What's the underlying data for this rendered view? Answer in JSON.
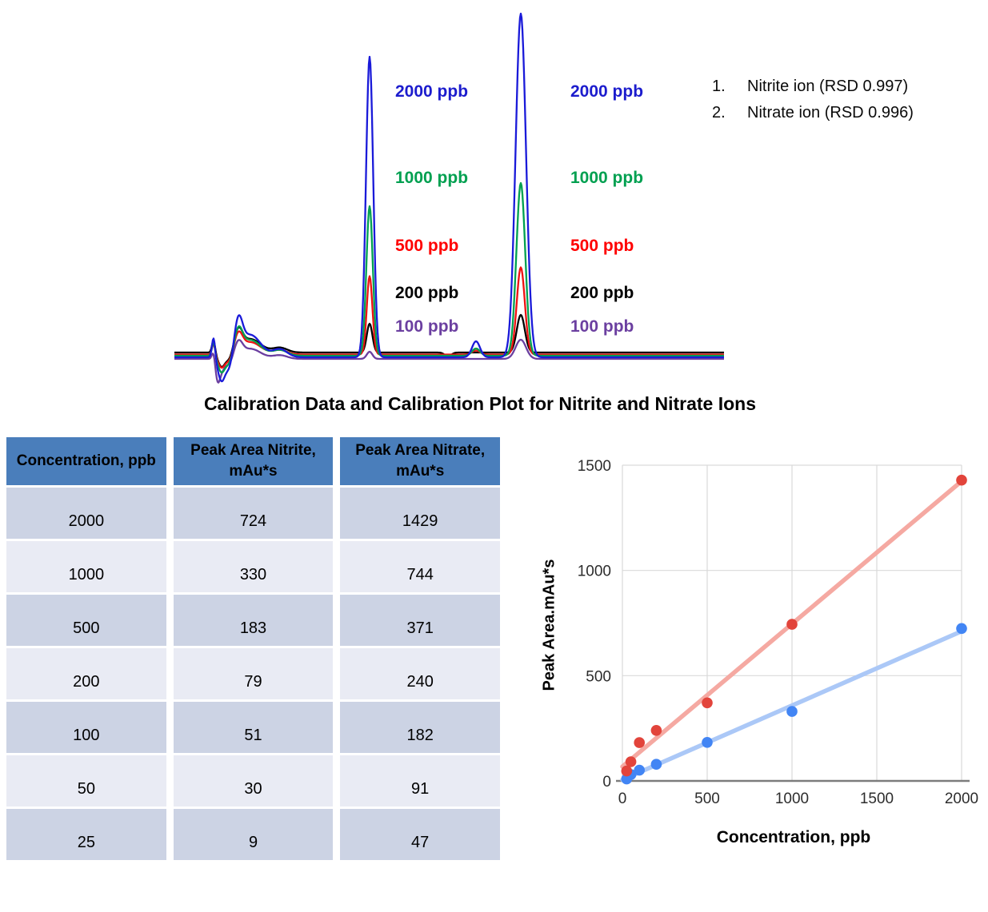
{
  "title": "Calibration Data and Calibration Plot for Nitrite and Nitrate Ions",
  "chromatogram": {
    "legend": [
      {
        "num": "1.",
        "label": "Nitrite ion (RSD 0.997)"
      },
      {
        "num": "2.",
        "label": "Nitrate ion (RSD 0.996)"
      }
    ],
    "concentration_labels": [
      {
        "text": "2000 ppb",
        "color": "#1c1ccd"
      },
      {
        "text": "1000 ppb",
        "color": "#00a050"
      },
      {
        "text": "500 ppb",
        "color": "#ff0000"
      },
      {
        "text": "200 ppb",
        "color": "#000000"
      },
      {
        "text": "100 ppb",
        "color": "#6b3fa0"
      }
    ]
  },
  "table": {
    "headers": [
      "Concentration, ppb",
      "Peak Area Nitrite, mAu*s",
      "Peak Area Nitrate, mAu*s"
    ],
    "rows": [
      [
        "2000",
        "724",
        "1429"
      ],
      [
        "1000",
        "330",
        "744"
      ],
      [
        "500",
        "183",
        "371"
      ],
      [
        "200",
        "79",
        "240"
      ],
      [
        "100",
        "51",
        "182"
      ],
      [
        "50",
        "30",
        "91"
      ],
      [
        "25",
        "9",
        "47"
      ]
    ]
  },
  "chart_data": [
    {
      "type": "line",
      "title": "Overlaid chromatograms of nitrite (peak 1) and nitrate (peak 2) standards",
      "peak_assignments": [
        {
          "num": "1",
          "ion": "Nitrite ion",
          "rsd": "RSD 0.997"
        },
        {
          "num": "2",
          "ion": "Nitrate ion",
          "rsd": "RSD 0.996"
        }
      ],
      "traces": [
        {
          "label": "200 ppb",
          "color": "#000000",
          "artifact_amp": 0.6,
          "baseline_offset": -5,
          "peak1_h": 36,
          "peak1_sigma": 3.5,
          "peak2_h": 47,
          "peak2_sigma": 5.0,
          "mid_bump_h": 0,
          "mid_dip": 5,
          "pre_dip": 0
        },
        {
          "label": "100 ppb",
          "color": "#6b3fa0",
          "artifact_amp": 0.45,
          "baseline_offset": 3,
          "peak1_h": 9,
          "peak1_sigma": 3.5,
          "peak2_h": 24,
          "peak2_sigma": 6.5,
          "mid_bump_h": 0,
          "mid_dip": 0,
          "pre_dip": 22
        },
        {
          "label": "500 ppb",
          "color": "#ee1111",
          "artifact_amp": 0.55,
          "baseline_offset": -2.5,
          "peak1_h": 98,
          "peak1_sigma": 3.5,
          "peak2_h": 109,
          "peak2_sigma": 5.0,
          "mid_bump_h": 5,
          "mid_dip": 0,
          "pre_dip": 0
        },
        {
          "label": "1000 ppb",
          "color": "#00a050",
          "artifact_amp": 0.7,
          "baseline_offset": -1,
          "peak1_h": 187,
          "peak1_sigma": 4.0,
          "peak2_h": 216,
          "peak2_sigma": 5.5,
          "mid_bump_h": 9,
          "mid_dip": 0,
          "pre_dip": 0
        },
        {
          "label": "2000 ppb",
          "color": "#1a1ad9",
          "artifact_amp": 1.0,
          "baseline_offset": 1,
          "peak1_h": 376,
          "peak1_sigma": 4.5,
          "peak2_h": 430,
          "peak2_sigma": 6.5,
          "mid_bump_h": 20,
          "mid_dip": 0,
          "pre_dip": 0
        }
      ]
    },
    {
      "type": "scatter",
      "title": "",
      "xlabel": "Concentration, ppb",
      "ylabel": "Peak Area.mAu*s",
      "xlim": [
        0,
        2000
      ],
      "ylim": [
        0,
        1500
      ],
      "xticks": [
        0,
        500,
        1000,
        1500,
        2000
      ],
      "yticks": [
        0,
        500,
        1000,
        1500
      ],
      "grid": true,
      "legend_position": "none",
      "x": [
        25,
        50,
        100,
        200,
        500,
        1000,
        2000
      ],
      "series": [
        {
          "name": "Peak Area Nitrite, mAu*s",
          "color": "#4285f4",
          "trend_color": "#abc8f7",
          "values": [
            9,
            30,
            51,
            79,
            183,
            330,
            724
          ]
        },
        {
          "name": "Peak Area Nitrate, mAu*s",
          "color": "#e2443b",
          "trend_color": "#f5a9a2",
          "values": [
            47,
            91,
            182,
            240,
            371,
            744,
            1429
          ]
        }
      ]
    }
  ],
  "colors": {
    "table_header_bg": "#4a7ebb",
    "table_row_dark": "#ccd3e4",
    "table_row_light": "#e9ebf4",
    "axis_line": "#7c7c7c",
    "gridline": "#d9d9d9"
  }
}
